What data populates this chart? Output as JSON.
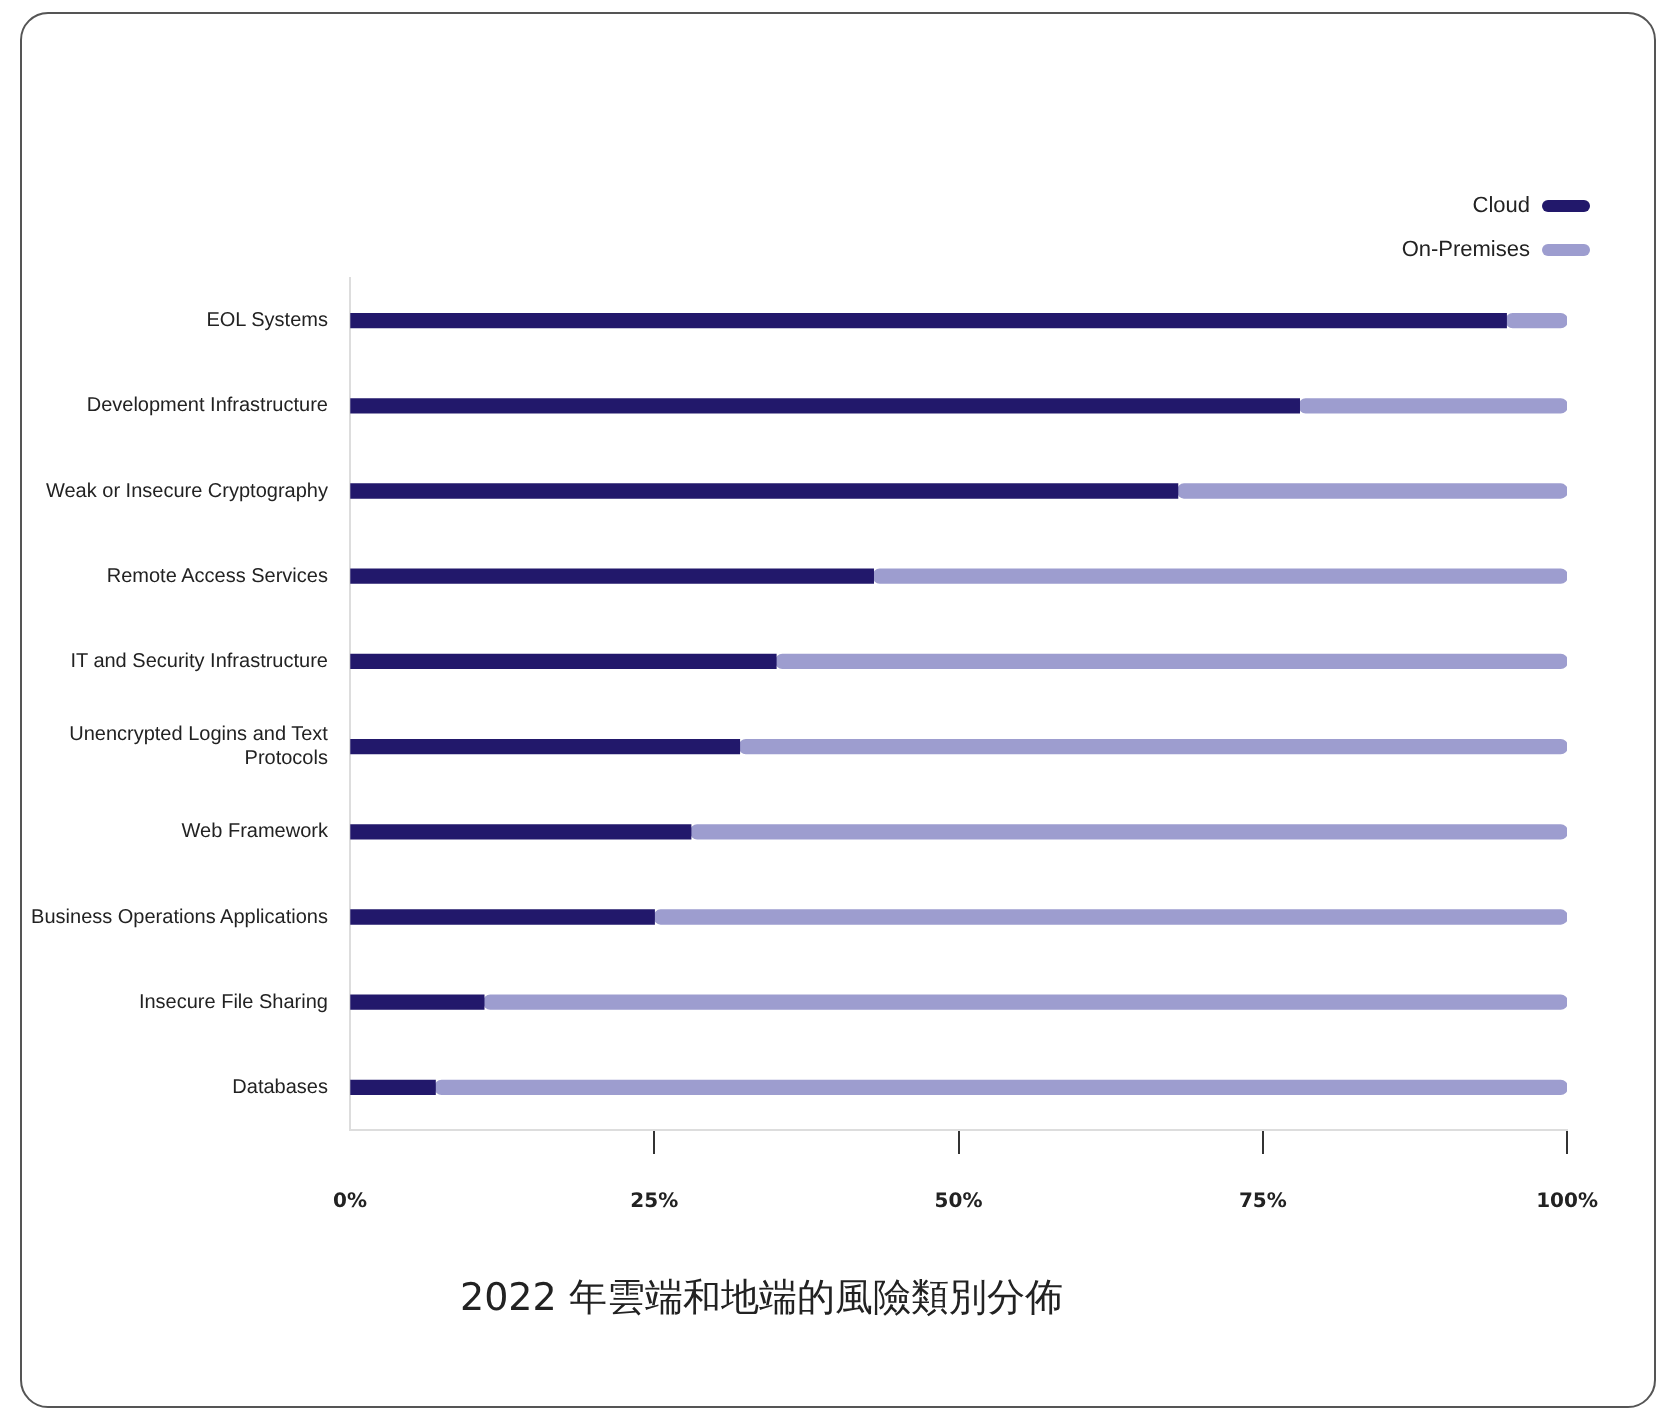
{
  "chart_data": {
    "type": "bar",
    "orientation": "horizontal",
    "stacked": true,
    "categories": [
      "EOL Systems",
      "Development Infrastructure",
      "Weak or Insecure Cryptography",
      "Remote Access Services",
      "IT and Security Infrastructure",
      "Unencrypted Logins and Text Protocols",
      "Web Framework",
      "Business Operations Applications",
      "Insecure File Sharing",
      "Databases"
    ],
    "series": [
      {
        "name": "Cloud",
        "color": "#22186b",
        "values": [
          95,
          78,
          68,
          43,
          35,
          32,
          28,
          25,
          11,
          7
        ]
      },
      {
        "name": "On-Premises",
        "color": "#9d9dcf",
        "values": [
          5,
          22,
          32,
          57,
          65,
          68,
          72,
          75,
          89,
          93
        ]
      }
    ],
    "xlim": [
      0,
      100
    ],
    "xticks": [
      {
        "value": 0,
        "label": "0%"
      },
      {
        "value": 25,
        "label": "25%"
      },
      {
        "value": 50,
        "label": "50%"
      },
      {
        "value": 75,
        "label": "75%"
      },
      {
        "value": 100,
        "label": "100%"
      }
    ],
    "grid": false,
    "legend": "top right",
    "annotations": [
      "2022 年雲端和地端的風險類別分佈"
    ]
  }
}
